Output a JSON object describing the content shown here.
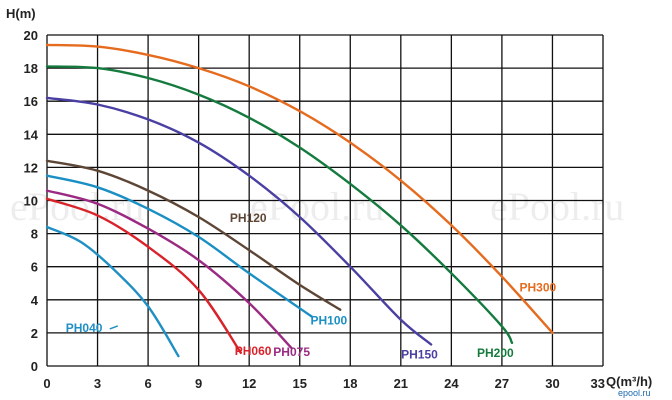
{
  "chart_data": {
    "type": "line",
    "title": "",
    "xlabel": "Q(m³/h)",
    "ylabel": "H(m)",
    "xlim": [
      0,
      33
    ],
    "ylim": [
      0,
      20
    ],
    "x_ticks": [
      "0",
      "3",
      "6",
      "9",
      "12",
      "15",
      "18",
      "21",
      "24",
      "27",
      "30",
      "33"
    ],
    "y_ticks": [
      "0",
      "2",
      "4",
      "6",
      "8",
      "10",
      "12",
      "14",
      "16",
      "18",
      "20"
    ],
    "grid": true,
    "legend": "none",
    "series": [
      {
        "name": "PH040",
        "color": "#1f8fc4",
        "points": [
          [
            0,
            8.4
          ],
          [
            2,
            7.5
          ],
          [
            4,
            5.8
          ],
          [
            6,
            3.6
          ],
          [
            7.8,
            0.6
          ]
        ]
      },
      {
        "name": "PH060",
        "color": "#d8232a",
        "points": [
          [
            0,
            10.1
          ],
          [
            3,
            9.1
          ],
          [
            6,
            7.2
          ],
          [
            9,
            4.6
          ],
          [
            11.5,
            0.8
          ]
        ]
      },
      {
        "name": "PH075",
        "color": "#9b2a82",
        "points": [
          [
            0,
            10.6
          ],
          [
            3,
            9.8
          ],
          [
            6,
            8.3
          ],
          [
            9,
            6.4
          ],
          [
            12,
            3.8
          ],
          [
            14.5,
            1.1
          ]
        ]
      },
      {
        "name": "PH100",
        "color": "#1a8fc4",
        "points": [
          [
            0,
            11.5
          ],
          [
            3,
            10.8
          ],
          [
            6,
            9.5
          ],
          [
            9,
            7.8
          ],
          [
            12,
            5.6
          ],
          [
            15.7,
            3.0
          ]
        ]
      },
      {
        "name": "PH120",
        "color": "#5e4636",
        "points": [
          [
            0,
            12.4
          ],
          [
            3,
            11.8
          ],
          [
            6,
            10.6
          ],
          [
            9,
            9.0
          ],
          [
            12,
            7.0
          ],
          [
            15,
            4.9
          ],
          [
            17.4,
            3.4
          ]
        ]
      },
      {
        "name": "PH150",
        "color": "#4a3fa2",
        "points": [
          [
            0,
            16.2
          ],
          [
            3,
            15.8
          ],
          [
            6,
            14.9
          ],
          [
            9,
            13.5
          ],
          [
            12,
            11.5
          ],
          [
            15,
            9.0
          ],
          [
            18,
            6.0
          ],
          [
            21,
            2.8
          ],
          [
            22.8,
            1.3
          ]
        ]
      },
      {
        "name": "PH200",
        "color": "#147a3e",
        "points": [
          [
            0,
            18.1
          ],
          [
            3,
            18.0
          ],
          [
            6,
            17.4
          ],
          [
            9,
            16.4
          ],
          [
            12,
            15.0
          ],
          [
            15,
            13.2
          ],
          [
            18,
            11.0
          ],
          [
            21,
            8.5
          ],
          [
            24,
            5.6
          ],
          [
            27,
            2.4
          ],
          [
            27.6,
            1.4
          ]
        ]
      },
      {
        "name": "PH300",
        "color": "#e56b1f",
        "points": [
          [
            0,
            19.4
          ],
          [
            3,
            19.3
          ],
          [
            6,
            18.8
          ],
          [
            9,
            18.0
          ],
          [
            12,
            16.9
          ],
          [
            15,
            15.4
          ],
          [
            18,
            13.5
          ],
          [
            21,
            11.2
          ],
          [
            24,
            8.5
          ],
          [
            27,
            5.4
          ],
          [
            30,
            2.0
          ]
        ]
      }
    ],
    "annotations": [
      "ePool.ru",
      "ePool.ru",
      "ePool.ru",
      "epool.ru"
    ]
  }
}
